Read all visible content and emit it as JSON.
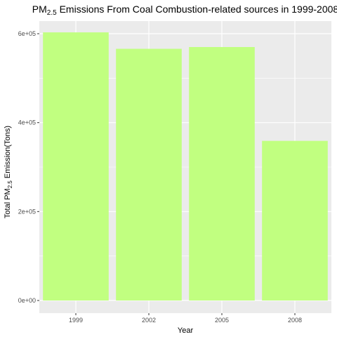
{
  "chart_data": {
    "type": "bar",
    "title_parts": [
      "PM",
      "2.5",
      " Emissions From Coal Combustion-related sources in 1999-2008"
    ],
    "xlabel": "Year",
    "ylabel_parts": [
      "Total PM",
      "2.5",
      " Emission(Tons)"
    ],
    "categories": [
      "1999",
      "2002",
      "2005",
      "2008"
    ],
    "values": [
      603000,
      566000,
      570000,
      359000
    ],
    "ylim": [
      0,
      630000
    ],
    "yticks": [
      0,
      200000,
      400000,
      600000
    ],
    "ytick_labels": [
      "0e+00",
      "2e+05",
      "4e+05",
      "6e+05"
    ],
    "grid": true,
    "legend": "none",
    "bar_color": "#c1ff80",
    "panel_color": "#ebebeb",
    "grid_color": "#ffffff"
  }
}
